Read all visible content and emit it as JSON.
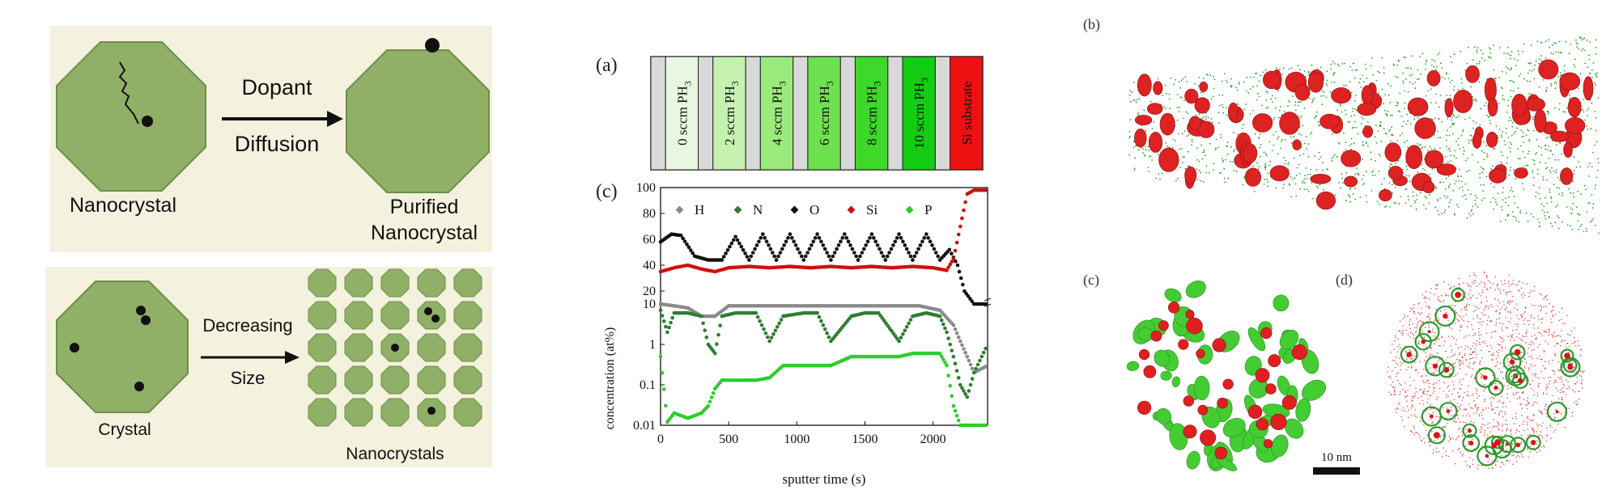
{
  "left": {
    "top_panel": {
      "dopant": "Dopant",
      "diffusion": "Diffusion",
      "nanocrystal": "Nanocrystal",
      "purified_line1": "Purified",
      "purified_line2": "Nanocrystal"
    },
    "bottom_panel": {
      "decreasing": "Decreasing",
      "size": "Size",
      "crystal": "Crystal",
      "nanocrystals": "Nanocrystals"
    },
    "colors": {
      "octagon": "#8fb066",
      "octagon_dark": "#6d8f48",
      "background": "#f4f1de"
    }
  },
  "middle": {
    "panel_a_label": "(a)",
    "layers": [
      {
        "label": "0 sccm PH",
        "sub": "3",
        "color": "#e8f8e0"
      },
      {
        "label": "2 sccm PH",
        "sub": "3",
        "color": "#c6f2b0"
      },
      {
        "label": "4 sccm PH",
        "sub": "3",
        "color": "#9aea7c"
      },
      {
        "label": "6 sccm PH",
        "sub": "3",
        "color": "#6fe050"
      },
      {
        "label": "8 sccm PH",
        "sub": "3",
        "color": "#3dd82a"
      },
      {
        "label": "10 sccm PH",
        "sub": "3",
        "color": "#14cc14"
      }
    ],
    "substrate": {
      "label": "Si substrate",
      "color": "#ee1111"
    },
    "spacer_color": "#d9d9d9"
  },
  "chart_data": {
    "type": "scatter",
    "panel_label": "(c)",
    "xlabel": "sputter time (s)",
    "ylabel": "concentration (at%)",
    "xlim": [
      0,
      2400
    ],
    "x_ticks": [
      0,
      500,
      1000,
      1500,
      2000
    ],
    "upper_axis": {
      "scale": "linear",
      "ylim": [
        10,
        100
      ],
      "ticks": [
        20,
        40,
        60,
        80,
        100
      ]
    },
    "lower_axis": {
      "scale": "log",
      "ylim": [
        0.01,
        10
      ],
      "ticks": [
        "0.01",
        "0.1",
        "1",
        "10"
      ]
    },
    "legend": {
      "placement": "top",
      "entries": [
        "H",
        "N",
        "O",
        "Si",
        "P"
      ]
    },
    "series": [
      {
        "name": "H",
        "color": "#8a8a8a",
        "axis": "lower",
        "x": [
          0,
          100,
          200,
          300,
          400,
          500,
          700,
          900,
          1100,
          1300,
          1500,
          1700,
          1900,
          2050,
          2150,
          2200,
          2250,
          2300,
          2400
        ],
        "y": [
          10,
          9,
          8,
          5,
          5,
          9,
          9,
          9,
          9,
          9,
          9,
          9,
          9,
          7,
          3,
          1.2,
          0.5,
          0.2,
          0.3
        ]
      },
      {
        "name": "N",
        "color": "#2e7d32",
        "axis": "lower",
        "x": [
          0,
          50,
          100,
          200,
          300,
          350,
          400,
          450,
          550,
          700,
          800,
          900,
          1050,
          1150,
          1250,
          1400,
          1500,
          1600,
          1750,
          1850,
          1950,
          2050,
          2100,
          2150,
          2200,
          2250,
          2300,
          2400
        ],
        "y": [
          7,
          2,
          6,
          6,
          5,
          1,
          0.6,
          5,
          6,
          6,
          1.2,
          5,
          6,
          6,
          1.2,
          5,
          6,
          6,
          1.2,
          5,
          6,
          5,
          2,
          0.5,
          0.1,
          0.05,
          0.2,
          1
        ]
      },
      {
        "name": "O",
        "color": "#111111",
        "axis": "upper",
        "x": [
          0,
          80,
          150,
          250,
          350,
          450,
          550,
          650,
          750,
          850,
          950,
          1050,
          1150,
          1250,
          1350,
          1450,
          1550,
          1650,
          1750,
          1850,
          1950,
          2050,
          2120,
          2180,
          2230,
          2300,
          2400
        ],
        "y": [
          58,
          64,
          63,
          47,
          44,
          44,
          62,
          44,
          64,
          44,
          64,
          44,
          64,
          44,
          64,
          44,
          64,
          44,
          64,
          44,
          64,
          44,
          52,
          40,
          20,
          10,
          10
        ]
      },
      {
        "name": "Si",
        "color": "#cc1111",
        "axis": "upper",
        "x": [
          0,
          100,
          200,
          300,
          400,
          500,
          650,
          800,
          950,
          1100,
          1250,
          1400,
          1550,
          1700,
          1850,
          2000,
          2100,
          2150,
          2200,
          2250,
          2300,
          2400
        ],
        "y": [
          35,
          38,
          40,
          37,
          35,
          38,
          39,
          38,
          39,
          38,
          39,
          38,
          39,
          38,
          39,
          38,
          36,
          45,
          70,
          95,
          98,
          98
        ]
      },
      {
        "name": "P",
        "color": "#2ecc2e",
        "axis": "lower",
        "x": [
          0,
          50,
          100,
          200,
          300,
          350,
          400,
          450,
          550,
          700,
          800,
          900,
          1050,
          1150,
          1250,
          1400,
          1500,
          1600,
          1750,
          1850,
          1950,
          2050,
          2100,
          2150,
          2200,
          2250,
          2300,
          2400
        ],
        "y": [
          0.5,
          0.012,
          0.02,
          0.015,
          0.02,
          0.03,
          0.08,
          0.13,
          0.13,
          0.13,
          0.15,
          0.3,
          0.3,
          0.3,
          0.3,
          0.5,
          0.5,
          0.5,
          0.5,
          0.6,
          0.6,
          0.6,
          0.3,
          0.03,
          0.01,
          0.01,
          0.01,
          0.01
        ]
      }
    ]
  },
  "right": {
    "label_b": "(b)",
    "label_c": "(c)",
    "label_d": "(d)",
    "scale_bar": "10 nm"
  }
}
